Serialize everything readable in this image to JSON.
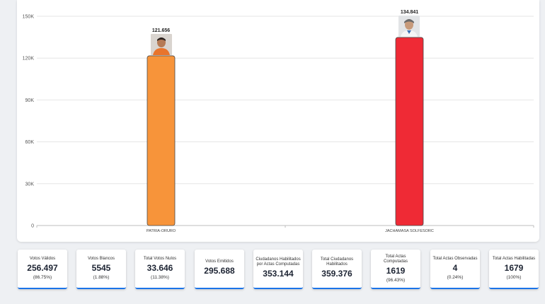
{
  "chart_data": {
    "type": "bar",
    "categories": [
      "PATRIA-ORURO",
      "JACHAMASA SOLFESORC"
    ],
    "values": [
      121656,
      134841
    ],
    "value_labels": [
      "121.656",
      "134.841"
    ],
    "colors": [
      "#f7943a",
      "#ef2a35"
    ],
    "ylim": [
      0,
      150000
    ],
    "yticks": [
      0,
      30000,
      60000,
      90000,
      120000,
      150000
    ],
    "ytick_labels": [
      "0",
      "30K",
      "60K",
      "90K",
      "120K",
      "150K"
    ],
    "grid": true,
    "title": "",
    "xlabel": "",
    "ylabel": ""
  },
  "stats": [
    {
      "label": "Votos Válidos",
      "value": "256.497",
      "pct": "(86.75%)"
    },
    {
      "label": "Votos Blancos",
      "value": "5545",
      "pct": "(1.88%)"
    },
    {
      "label": "Total Votos Nulos",
      "value": "33.646",
      "pct": "(11.38%)"
    },
    {
      "label": "Votos Emitidos",
      "value": "295.688",
      "pct": ""
    },
    {
      "label": "Ciudadanos Habilitados por Actas Computadas",
      "value": "353.144",
      "pct": ""
    },
    {
      "label": "Total Ciudadanos Habilitados",
      "value": "359.376",
      "pct": ""
    },
    {
      "label": "Total Actas Computadas",
      "value": "1619",
      "pct": "(96.43%)"
    },
    {
      "label": "Total Actas Observadas",
      "value": "4",
      "pct": "(0.24%)"
    },
    {
      "label": "Total Actas Habilitadas",
      "value": "1679",
      "pct": "(100%)"
    }
  ]
}
